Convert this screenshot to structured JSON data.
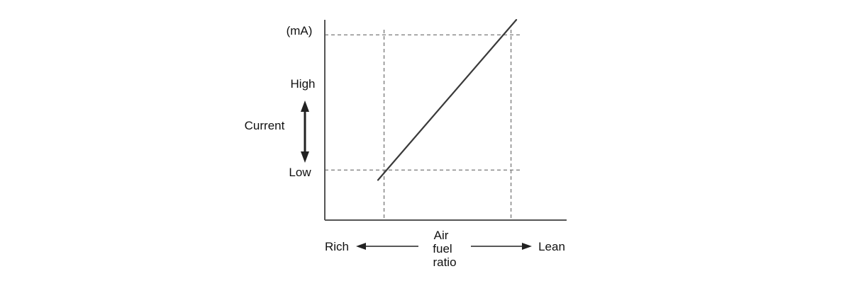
{
  "colors": {
    "background": "#ffffff",
    "axis": "#555555",
    "guide": "#777777",
    "series": "#3a3a3a",
    "arrow": "#222222",
    "text": "#111111"
  },
  "chart_data": {
    "type": "line",
    "title": "",
    "grid": false,
    "x_axis": {
      "label_lines": [
        "Air",
        "fuel",
        "ratio"
      ],
      "left_end": "Rich",
      "right_end": "Lean",
      "tick_labels": []
    },
    "y_axis": {
      "unit": "(mA)",
      "label": "Current",
      "high": "High",
      "low": "Low",
      "tick_labels": []
    },
    "xlim": [
      0,
      1
    ],
    "ylim": [
      0,
      1
    ],
    "series": [
      {
        "x": [
          0.22,
          0.792
        ],
        "y": [
          0.2,
          1.0
        ]
      }
    ],
    "guides": {
      "x": [
        0.245,
        0.77
      ],
      "y": [
        0.25,
        0.925
      ]
    }
  }
}
